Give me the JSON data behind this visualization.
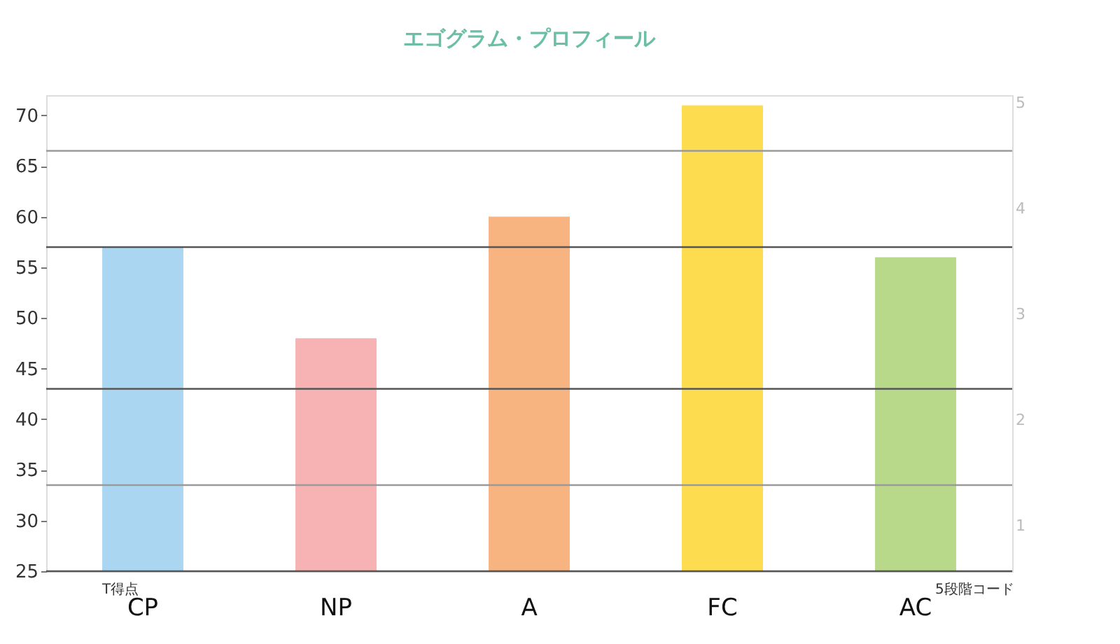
{
  "chart_data": {
    "type": "bar",
    "title": "エゴグラム・プロフィール",
    "annotations": [
      "T得点",
      "5段階コード"
    ],
    "categories": [
      "CP",
      "NP",
      "A",
      "FC",
      "AC"
    ],
    "values": [
      57,
      48,
      60,
      71,
      56
    ],
    "colors": [
      "#aad6f2",
      "#f7b3b3",
      "#f7b380",
      "#fddc4f",
      "#b8d98a"
    ],
    "ylim": [
      25,
      72
    ],
    "yticks": [
      25,
      30,
      35,
      40,
      45,
      50,
      55,
      60,
      65,
      70
    ],
    "y2lim": [
      0.57,
      5.07
    ],
    "y2ticks": [
      1,
      2,
      3,
      4,
      5
    ],
    "ref_lines": [
      {
        "axis": "y",
        "value": 66.5,
        "color": "#9a9a9a"
      },
      {
        "axis": "y",
        "value": 57,
        "color": "#555555"
      },
      {
        "axis": "y",
        "value": 43,
        "color": "#555555"
      },
      {
        "axis": "y",
        "value": 33.5,
        "color": "#9a9a9a"
      }
    ],
    "grid": false
  }
}
